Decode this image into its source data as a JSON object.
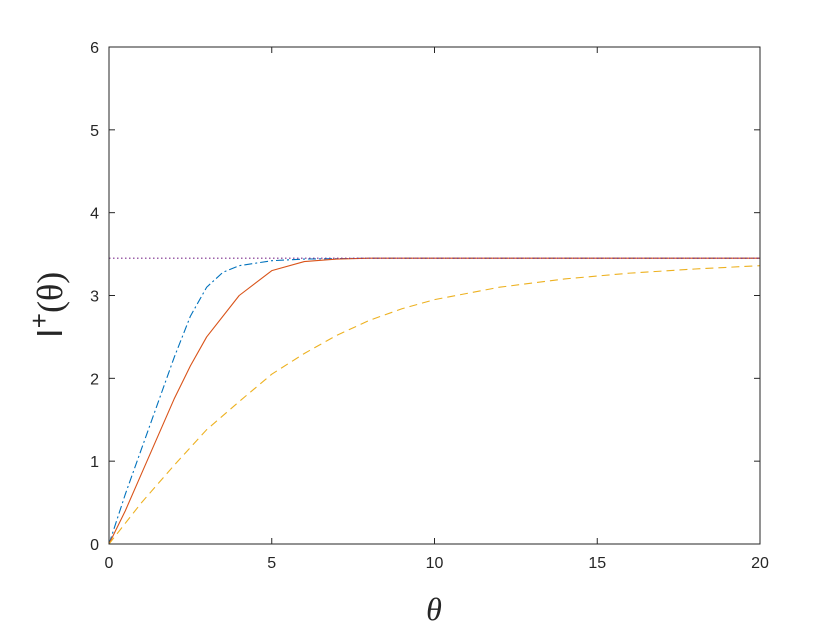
{
  "chart_data": {
    "type": "line",
    "xlabel": "θ",
    "ylabel": {
      "base": "I",
      "sup": "+",
      "arg": "(θ)"
    },
    "xlim": [
      0,
      20
    ],
    "ylim": [
      0,
      6
    ],
    "xticks": [
      0,
      5,
      10,
      15,
      20
    ],
    "yticks": [
      0,
      1,
      2,
      3,
      4,
      5,
      6
    ],
    "grid": false,
    "legend": "none",
    "series": [
      {
        "style": "dashdot",
        "color": "#0072BD",
        "x": [
          0,
          0.5,
          1,
          1.5,
          2,
          2.5,
          3,
          3.5,
          4,
          5,
          6,
          8,
          10,
          20
        ],
        "y": [
          0,
          0.6,
          1.15,
          1.7,
          2.25,
          2.75,
          3.1,
          3.28,
          3.36,
          3.42,
          3.44,
          3.45,
          3.45,
          3.45
        ]
      },
      {
        "style": "solid",
        "color": "#D95319",
        "x": [
          0,
          0.5,
          1,
          1.5,
          2,
          2.5,
          3,
          4,
          5,
          6,
          7,
          8,
          10,
          20
        ],
        "y": [
          0,
          0.4,
          0.85,
          1.3,
          1.75,
          2.15,
          2.5,
          3.0,
          3.3,
          3.41,
          3.44,
          3.45,
          3.45,
          3.45
        ]
      },
      {
        "style": "dashed",
        "color": "#EDB120",
        "x": [
          0,
          1,
          2,
          3,
          4,
          5,
          6,
          7,
          8,
          9,
          10,
          12,
          14,
          16,
          18,
          20
        ],
        "y": [
          0,
          0.5,
          0.95,
          1.38,
          1.72,
          2.05,
          2.3,
          2.52,
          2.7,
          2.84,
          2.95,
          3.1,
          3.2,
          3.27,
          3.32,
          3.36
        ]
      },
      {
        "style": "dotted",
        "color": "#7E2F8E",
        "x": [
          0,
          20
        ],
        "y": [
          3.45,
          3.45
        ]
      }
    ]
  }
}
